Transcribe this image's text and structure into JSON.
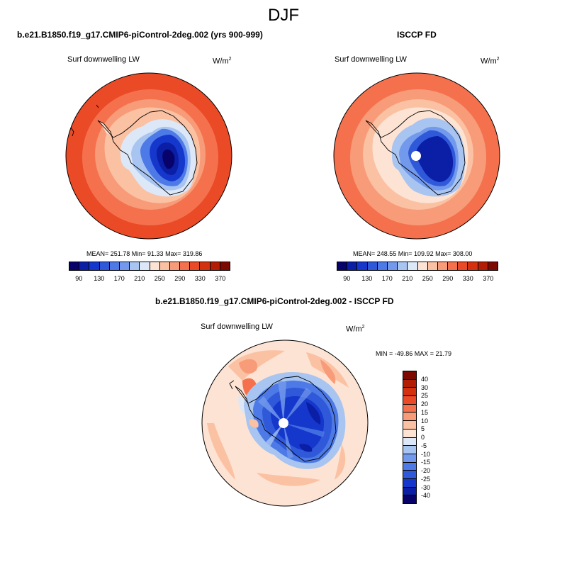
{
  "season": "DJF",
  "panels": [
    {
      "title": "b.e21.B1850.f19_g17.CMIP6-piControl-2deg.002 (yrs 900-999)",
      "variable": "Surf downwelling LW",
      "units_base": "W/m",
      "units_exp": "2",
      "stats": "MEAN= 251.78  Min=  91.33  Max= 319.86"
    },
    {
      "title": "ISCCP FD",
      "variable": "Surf downwelling LW",
      "units_base": "W/m",
      "units_exp": "2",
      "stats": "MEAN= 248.55  Min= 109.92  Max= 308.00"
    },
    {
      "title": "b.e21.B1850.f19_g17.CMIP6-piControl-2deg.002 - ISCCP FD",
      "variable": "Surf downwelling LW",
      "units_base": "W/m",
      "units_exp": "2",
      "stats": "MIN = -49.86 MAX =  21.79"
    }
  ],
  "abs_colorbar": {
    "colors": [
      "#08036b",
      "#0a1ea6",
      "#1537cc",
      "#2f59d9",
      "#4d7ae6",
      "#7299eb",
      "#a8c4f0",
      "#dce8f7",
      "#fde3d3",
      "#fbc1a3",
      "#f89b78",
      "#f5714d",
      "#ea4a26",
      "#d4310f",
      "#b21d04",
      "#7e0901"
    ],
    "labels": [
      "90",
      "130",
      "170",
      "210",
      "250",
      "290",
      "330",
      "370"
    ]
  },
  "diff_colorbar": {
    "colors": [
      "#08036b",
      "#0a1ea6",
      "#1537cc",
      "#2f59d9",
      "#4d7ae6",
      "#7299eb",
      "#a8c4f0",
      "#dce8f7",
      "#fde3d3",
      "#fbc1a3",
      "#f89b78",
      "#f5714d",
      "#ea4a26",
      "#d4310f",
      "#b21d04",
      "#7e0901"
    ],
    "labels": [
      "-40",
      "-30",
      "-25",
      "-20",
      "-15",
      "-10",
      "-5",
      "0",
      "5",
      "10",
      "15",
      "20",
      "25",
      "30",
      "40"
    ]
  }
}
